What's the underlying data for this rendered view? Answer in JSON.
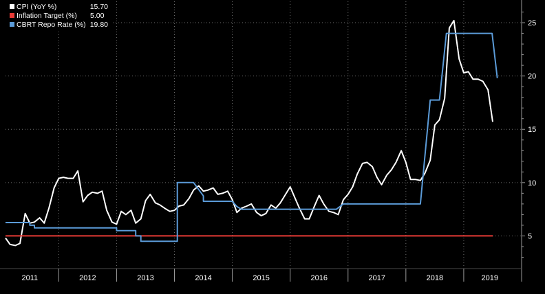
{
  "chart_data": {
    "type": "line",
    "title": "",
    "xlabel": "",
    "ylabel": "",
    "ylim": [
      2,
      27
    ],
    "yticks": [
      5,
      10,
      15,
      20,
      25
    ],
    "xlim": [
      2010.58,
      2019.5
    ],
    "x_tick_labels": [
      {
        "label": "2011",
        "center": 2011.0
      },
      {
        "label": "2012",
        "center": 2012.0
      },
      {
        "label": "2013",
        "center": 2013.0
      },
      {
        "label": "2014",
        "center": 2014.0
      },
      {
        "label": "2015",
        "center": 2015.0
      },
      {
        "label": "2016",
        "center": 2016.0
      },
      {
        "label": "2017",
        "center": 2017.0
      },
      {
        "label": "2018",
        "center": 2018.0
      },
      {
        "label": "2019",
        "center": 2018.95
      }
    ],
    "year_dividers": [
      2011.5,
      2012.5,
      2013.5,
      2014.5,
      2015.5,
      2016.5,
      2017.5,
      2018.5
    ],
    "grid": true,
    "legend_position": "top-left",
    "series": [
      {
        "name": "CPI (YoY %)",
        "last_value": "15.70",
        "color": "#ffffff",
        "points": [
          [
            2010.58,
            4.8
          ],
          [
            2010.66,
            4.2
          ],
          [
            2010.75,
            4.1
          ],
          [
            2010.83,
            4.3
          ],
          [
            2010.92,
            7.1
          ],
          [
            2011.0,
            6.2
          ],
          [
            2011.08,
            6.3
          ],
          [
            2011.17,
            6.7
          ],
          [
            2011.25,
            6.2
          ],
          [
            2011.33,
            7.6
          ],
          [
            2011.42,
            9.5
          ],
          [
            2011.5,
            10.4
          ],
          [
            2011.58,
            10.5
          ],
          [
            2011.66,
            10.4
          ],
          [
            2011.75,
            10.4
          ],
          [
            2011.83,
            11.1
          ],
          [
            2011.92,
            8.2
          ],
          [
            2012.0,
            8.8
          ],
          [
            2012.08,
            9.1
          ],
          [
            2012.17,
            9.0
          ],
          [
            2012.25,
            9.2
          ],
          [
            2012.33,
            7.4
          ],
          [
            2012.42,
            6.3
          ],
          [
            2012.5,
            6.1
          ],
          [
            2012.58,
            7.3
          ],
          [
            2012.66,
            7.0
          ],
          [
            2012.75,
            7.4
          ],
          [
            2012.83,
            6.2
          ],
          [
            2012.92,
            6.6
          ],
          [
            2013.0,
            8.3
          ],
          [
            2013.08,
            8.9
          ],
          [
            2013.17,
            8.1
          ],
          [
            2013.25,
            7.9
          ],
          [
            2013.33,
            7.6
          ],
          [
            2013.42,
            7.3
          ],
          [
            2013.5,
            7.4
          ],
          [
            2013.58,
            7.8
          ],
          [
            2013.66,
            7.9
          ],
          [
            2013.75,
            8.5
          ],
          [
            2013.83,
            9.3
          ],
          [
            2013.92,
            9.7
          ],
          [
            2014.0,
            9.2
          ],
          [
            2014.08,
            9.3
          ],
          [
            2014.17,
            9.5
          ],
          [
            2014.25,
            8.9
          ],
          [
            2014.33,
            9.0
          ],
          [
            2014.42,
            9.2
          ],
          [
            2014.5,
            8.4
          ],
          [
            2014.58,
            7.2
          ],
          [
            2014.66,
            7.6
          ],
          [
            2014.75,
            7.8
          ],
          [
            2014.83,
            8.0
          ],
          [
            2014.92,
            7.2
          ],
          [
            2015.0,
            6.9
          ],
          [
            2015.08,
            7.1
          ],
          [
            2015.17,
            7.9
          ],
          [
            2015.25,
            7.6
          ],
          [
            2015.33,
            8.1
          ],
          [
            2015.42,
            8.9
          ],
          [
            2015.5,
            9.6
          ],
          [
            2015.58,
            8.6
          ],
          [
            2015.66,
            7.6
          ],
          [
            2015.75,
            6.6
          ],
          [
            2015.83,
            6.6
          ],
          [
            2015.92,
            7.8
          ],
          [
            2016.0,
            8.8
          ],
          [
            2016.08,
            8.0
          ],
          [
            2016.17,
            7.3
          ],
          [
            2016.25,
            7.2
          ],
          [
            2016.33,
            7.0
          ],
          [
            2016.42,
            8.4
          ],
          [
            2016.5,
            8.9
          ],
          [
            2016.58,
            9.6
          ],
          [
            2016.66,
            10.8
          ],
          [
            2016.75,
            11.8
          ],
          [
            2016.83,
            11.9
          ],
          [
            2016.92,
            11.5
          ],
          [
            2017.0,
            10.5
          ],
          [
            2017.08,
            9.8
          ],
          [
            2017.17,
            10.7
          ],
          [
            2017.25,
            11.2
          ],
          [
            2017.33,
            11.9
          ],
          [
            2017.42,
            13.0
          ],
          [
            2017.5,
            11.9
          ],
          [
            2017.58,
            10.3
          ],
          [
            2017.66,
            10.3
          ],
          [
            2017.75,
            10.2
          ],
          [
            2017.83,
            10.9
          ],
          [
            2017.92,
            12.1
          ],
          [
            2018.0,
            15.4
          ],
          [
            2018.08,
            15.9
          ],
          [
            2018.17,
            17.9
          ],
          [
            2018.25,
            24.5
          ],
          [
            2018.33,
            25.2
          ],
          [
            2018.42,
            21.6
          ],
          [
            2018.5,
            20.3
          ],
          [
            2018.58,
            20.4
          ],
          [
            2018.66,
            19.7
          ],
          [
            2018.75,
            19.7
          ],
          [
            2018.83,
            19.5
          ],
          [
            2018.92,
            18.7
          ],
          [
            2019.0,
            15.7
          ]
        ]
      },
      {
        "name": "Inflation Target (%)",
        "last_value": "5.00",
        "color": "#e83a35",
        "points": [
          [
            2010.58,
            5.0
          ],
          [
            2019.0,
            5.0
          ]
        ]
      },
      {
        "name": "CBRT Repo Rate (%)",
        "last_value": "19.80",
        "color": "#5b9bd8",
        "points": [
          [
            2010.58,
            6.25
          ],
          [
            2011.0,
            6.25
          ],
          [
            2011.0,
            6.0
          ],
          [
            2011.08,
            6.0
          ],
          [
            2011.08,
            5.75
          ],
          [
            2012.5,
            5.75
          ],
          [
            2012.5,
            5.5
          ],
          [
            2012.83,
            5.5
          ],
          [
            2012.83,
            5.0
          ],
          [
            2012.92,
            5.0
          ],
          [
            2012.92,
            4.5
          ],
          [
            2013.55,
            4.5
          ],
          [
            2013.55,
            10.0
          ],
          [
            2013.83,
            10.0
          ],
          [
            2014.0,
            8.75
          ],
          [
            2014.0,
            8.25
          ],
          [
            2014.5,
            8.25
          ],
          [
            2014.58,
            7.75
          ],
          [
            2014.66,
            7.5
          ],
          [
            2016.3,
            7.5
          ],
          [
            2016.42,
            8.0
          ],
          [
            2017.75,
            8.0
          ],
          [
            2017.92,
            17.75
          ],
          [
            2018.08,
            17.75
          ],
          [
            2018.2,
            24.0
          ],
          [
            2018.99,
            24.0
          ],
          [
            2019.08,
            19.8
          ]
        ]
      }
    ]
  }
}
